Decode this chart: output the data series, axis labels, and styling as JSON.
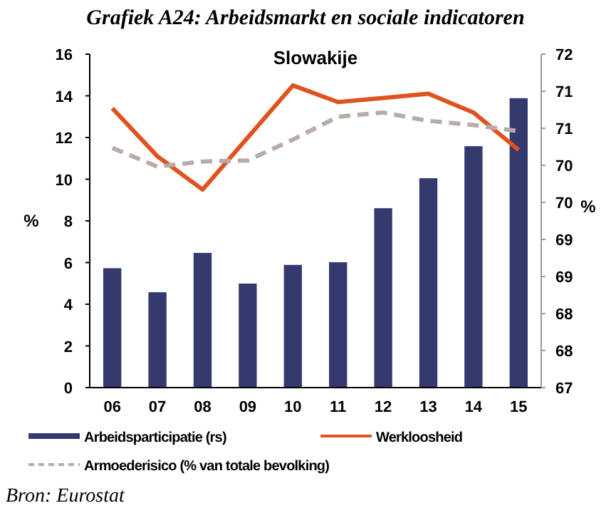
{
  "chart_data": {
    "type": "bar",
    "title": "Grafiek A24: Arbeidsmarkt en sociale indicatoren",
    "subtitle": "Slowakije",
    "ylabel": "%",
    "y2label": "%",
    "categories": [
      "06",
      "07",
      "08",
      "09",
      "10",
      "11",
      "12",
      "13",
      "14",
      "15"
    ],
    "series": [
      {
        "name": "Arbeidsparticipatie (rs)",
        "axis": "y2",
        "color": "#353a6e",
        "values": [
          68.79,
          68.43,
          69.02,
          68.56,
          68.84,
          68.88,
          69.69,
          70.14,
          70.62,
          71.34
        ]
      },
      {
        "name": "Werkloosheid",
        "type": "line",
        "color": "#e0521f",
        "values": [
          13.4,
          11.1,
          9.5,
          12.0,
          14.5,
          13.7,
          13.9,
          14.1,
          13.2,
          11.4
        ]
      },
      {
        "name": "Armoederisico (% van totale bevolking)",
        "type": "line",
        "line_style": "dashed",
        "color": "#b8aca6",
        "values": [
          11.5,
          10.6,
          10.85,
          10.9,
          11.9,
          13.0,
          13.2,
          12.8,
          12.6,
          12.3
        ]
      }
    ],
    "ylim": [
      0,
      16
    ],
    "yticks": [
      0,
      2,
      4,
      6,
      8,
      10,
      12,
      14,
      16
    ],
    "y2lim": [
      67,
      72
    ],
    "y2ticks": [
      67,
      {
        "value": 67.556,
        "label": "68"
      },
      {
        "value": 68.111,
        "label": "68"
      },
      {
        "value": 68.667,
        "label": "69"
      },
      {
        "value": 69.222,
        "label": "69"
      },
      {
        "value": 69.778,
        "label": "70"
      },
      {
        "value": 70.333,
        "label": "70"
      },
      {
        "value": 70.889,
        "label": "71"
      },
      {
        "value": 71.444,
        "label": "71"
      },
      72
    ],
    "grid": false,
    "legend": "bottom",
    "annotations": [
      "Bron: Eurostat"
    ]
  }
}
